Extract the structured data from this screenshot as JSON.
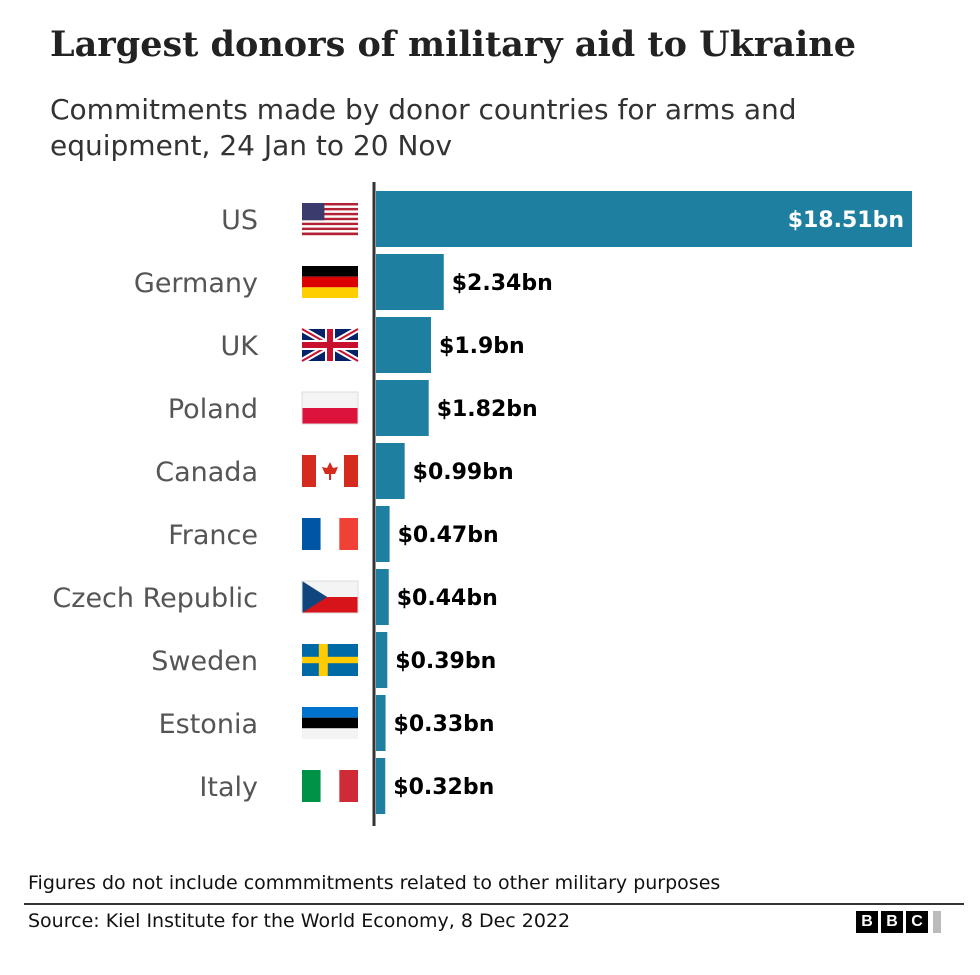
{
  "title": "Largest donors of military aid to Ukraine",
  "subtitle": "Commitments made by donor countries for arms and equipment, 24 Jan to 20 Nov",
  "colors": {
    "bar": "#1f7fa0",
    "axis": "#333333",
    "label": "#555555",
    "value": "#000000",
    "value_inside": "#ffffff"
  },
  "chart_data": {
    "type": "bar",
    "orientation": "horizontal",
    "categories": [
      "US",
      "Germany",
      "UK",
      "Poland",
      "Canada",
      "France",
      "Czech Republic",
      "Sweden",
      "Estonia",
      "Italy"
    ],
    "values": [
      18.51,
      2.34,
      1.9,
      1.82,
      0.99,
      0.47,
      0.44,
      0.39,
      0.33,
      0.32
    ],
    "value_labels": [
      "$18.51bn",
      "$2.34bn",
      "$1.9bn",
      "$1.82bn",
      "$0.99bn",
      "$0.47bn",
      "$0.44bn",
      "$0.39bn",
      "$0.33bn",
      "$0.32bn"
    ],
    "flags": [
      "us-flag-icon",
      "germany-flag-icon",
      "uk-flag-icon",
      "poland-flag-icon",
      "canada-flag-icon",
      "france-flag-icon",
      "czech-flag-icon",
      "sweden-flag-icon",
      "estonia-flag-icon",
      "italy-flag-icon"
    ],
    "xlim": [
      0,
      18.51
    ],
    "unit": "bn",
    "grid": false,
    "legend": "none"
  },
  "footnote": "Figures do not include commmitments related to other military purposes",
  "source": "Source: Kiel Institute for the World Economy, 8 Dec 2022",
  "logo": {
    "letters": [
      "B",
      "B",
      "C"
    ]
  }
}
